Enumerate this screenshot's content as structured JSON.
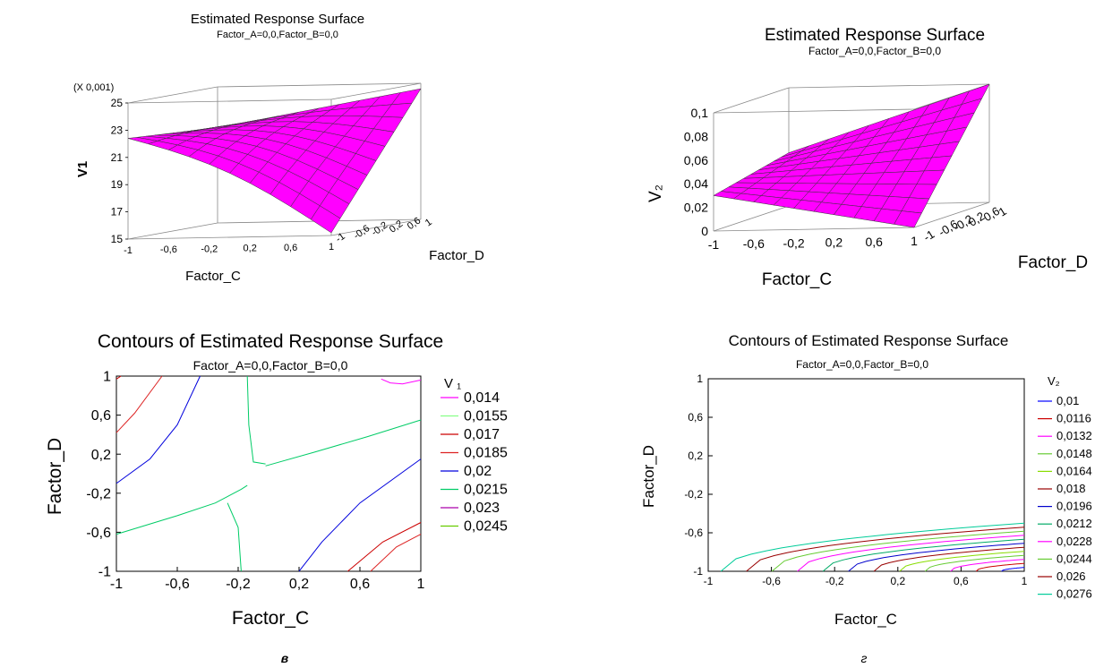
{
  "colors": {
    "surface": "#ff00ff",
    "mesh": "#333333",
    "contour_palette": [
      "#ff00ff",
      "#88ff88",
      "#cc0000",
      "#dd2222",
      "#0000dd",
      "#00cc66",
      "#aa00aa",
      "#66cc00",
      "#0000ff",
      "#cc0000",
      "#ff00ff",
      "#66cc33",
      "#88dd00",
      "#990000",
      "#0000cc",
      "#00aa66"
    ]
  },
  "chart_data": [
    {
      "type": "surface",
      "title": "Estimated Response Surface",
      "subtitle": "Factor_A=0,0,Factor_B=0,0",
      "xlabel": "Factor_C",
      "ylabel": "Factor_D",
      "zlabel": "V1",
      "zmultiplier": "(X 0,001)",
      "x_ticks": [
        "-1",
        "-0,6",
        "-0,2",
        "0,2",
        "0,6",
        "1"
      ],
      "y_ticks": [
        "-1",
        "-0,6",
        "-0,2",
        "0,2",
        "0,6",
        "1"
      ],
      "z_ticks": [
        "15",
        "17",
        "19",
        "21",
        "23",
        "25"
      ],
      "xlim": [
        -1,
        1
      ],
      "ylim": [
        -1,
        1
      ],
      "zlim": [
        15,
        25
      ],
      "x": [
        -1,
        1
      ],
      "y": [
        -1,
        1
      ],
      "corner_values": {
        "c_minus1_d_minus1": 22.4,
        "c_plus1_d_minus1": 15.2,
        "c_minus1_d_plus1": 22.0,
        "c_plus1_d_plus1": 24.6
      }
    },
    {
      "type": "surface",
      "title": "Estimated Response Surface",
      "subtitle": "Factor_A=0,0,Factor_B=0,0",
      "xlabel": "Factor_C",
      "ylabel": "Factor_D",
      "zlabel": "V₂",
      "x_ticks": [
        "-1",
        "-0,6",
        "-0,2",
        "0,2",
        "0,6",
        "1"
      ],
      "y_ticks": [
        "-1",
        "-0,6",
        "-0,2",
        "0,2",
        "0,6",
        "1"
      ],
      "z_ticks": [
        "0",
        "0,02",
        "0,04",
        "0,06",
        "0,08",
        "0,1"
      ],
      "xlim": [
        -1,
        1
      ],
      "ylim": [
        -1,
        1
      ],
      "zlim": [
        0,
        0.1
      ],
      "corner_values": {
        "c_minus1_d_minus1": 0.03,
        "c_plus1_d_minus1": 0.0,
        "c_minus1_d_plus1": 0.045,
        "c_plus1_d_plus1": 0.1
      }
    },
    {
      "type": "contour",
      "title": "Contours of Estimated Response Surface",
      "subtitle": "Factor_A=0,0,Factor_B=0,0",
      "xlabel": "Factor_C",
      "ylabel": "Factor_D",
      "legend_title": "V ₁",
      "legend_position": "right",
      "x_ticks": [
        "-1",
        "-0,6",
        "-0,2",
        "0,2",
        "0,6",
        "1"
      ],
      "y_ticks": [
        "-1",
        "-0,6",
        "-0,2",
        "0,2",
        "0,6",
        "1"
      ],
      "xlim": [
        -1,
        1
      ],
      "ylim": [
        -1,
        1
      ],
      "levels": [
        {
          "label": "0,014",
          "color": "#ff00ff",
          "lines": [
            [
              [
                0.74,
                0.97
              ],
              [
                0.8,
                0.93
              ],
              [
                0.88,
                0.92
              ],
              [
                1.0,
                0.96
              ]
            ]
          ]
        },
        {
          "label": "0,0155",
          "color": "#88ff88",
          "lines": []
        },
        {
          "label": "0,017",
          "color": "#cc0000",
          "lines": [
            [
              [
                -1.0,
                0.97
              ],
              [
                -0.97,
                1.0
              ]
            ],
            [
              [
                0.52,
                -1.0
              ],
              [
                0.75,
                -0.7
              ],
              [
                1.0,
                -0.5
              ]
            ]
          ]
        },
        {
          "label": "0,0185",
          "color": "#dd2222",
          "lines": [
            [
              [
                -1.0,
                0.42
              ],
              [
                -0.88,
                0.62
              ],
              [
                -0.7,
                1.0
              ]
            ],
            [
              [
                0.67,
                -1.0
              ],
              [
                0.84,
                -0.75
              ],
              [
                1.0,
                -0.62
              ]
            ]
          ]
        },
        {
          "label": "0,02",
          "color": "#0000dd",
          "lines": [
            [
              [
                -1.0,
                -0.1
              ],
              [
                -0.78,
                0.15
              ],
              [
                -0.6,
                0.5
              ],
              [
                -0.45,
                1.0
              ]
            ],
            [
              [
                0.2,
                -1.0
              ],
              [
                0.35,
                -0.7
              ],
              [
                0.6,
                -0.3
              ],
              [
                1.0,
                0.15
              ]
            ]
          ]
        },
        {
          "label": "0,0215",
          "color": "#00cc66",
          "lines": [
            [
              [
                -1.0,
                -0.62
              ],
              [
                -0.6,
                -0.43
              ],
              [
                -0.35,
                -0.3
              ],
              [
                -0.18,
                -0.16
              ],
              [
                -0.14,
                -0.12
              ]
            ],
            [
              [
                -0.27,
                -0.3
              ],
              [
                -0.2,
                -0.55
              ],
              [
                -0.18,
                -1.0
              ]
            ],
            [
              [
                -0.14,
                1.0
              ],
              [
                -0.13,
                0.5
              ],
              [
                -0.1,
                0.12
              ],
              [
                -0.02,
                0.1
              ]
            ],
            [
              [
                -0.02,
                0.08
              ],
              [
                0.3,
                0.22
              ],
              [
                0.65,
                0.38
              ],
              [
                1.0,
                0.55
              ]
            ]
          ]
        },
        {
          "label": "0,023",
          "color": "#aa00aa",
          "lines": []
        },
        {
          "label": "0,0245",
          "color": "#66cc00",
          "lines": []
        }
      ]
    },
    {
      "type": "contour",
      "title": "Contours of Estimated Response Surface",
      "subtitle": "Factor_A=0,0,Factor_B=0,0",
      "xlabel": "Factor_C",
      "ylabel": "Factor_D",
      "legend_title": "V₂",
      "legend_position": "right",
      "x_ticks": [
        "-1",
        "-0,6",
        "-0,2",
        "0,2",
        "0,6",
        "1"
      ],
      "y_ticks": [
        "-1",
        "-0,6",
        "-0,2",
        "0,2",
        "0,6",
        "1"
      ],
      "xlim": [
        -1,
        1
      ],
      "ylim": [
        -1,
        1
      ],
      "levels": [
        {
          "label": "0,01",
          "color": "#0000ff",
          "lines": []
        },
        {
          "label": "0,0116",
          "color": "#cc0000",
          "lines": []
        },
        {
          "label": "0,0132",
          "color": "#ff00ff",
          "lines": []
        },
        {
          "label": "0,0148",
          "color": "#66cc33",
          "lines": []
        },
        {
          "label": "0,0164",
          "color": "#88dd00",
          "lines": []
        },
        {
          "label": "0,018",
          "color": "#990000",
          "lines": []
        },
        {
          "label": "0,0196",
          "color": "#0000cc",
          "lines": []
        },
        {
          "label": "0,0212",
          "color": "#00aa66",
          "lines": []
        },
        {
          "label": "0,0228",
          "color": "#ff00ff",
          "lines": []
        },
        {
          "label": "0,0244",
          "color": "#66cc33",
          "lines": []
        },
        {
          "label": "0,026",
          "color": "#990000",
          "lines": []
        },
        {
          "label": "0,0276",
          "color": "#00cc99",
          "lines": []
        }
      ],
      "contour_family": {
        "x_start": [
          -0.92,
          0.95
        ],
        "y_end": [
          -0.5,
          -0.96
        ]
      }
    }
  ],
  "panel_labels": [
    "в",
    "г"
  ]
}
